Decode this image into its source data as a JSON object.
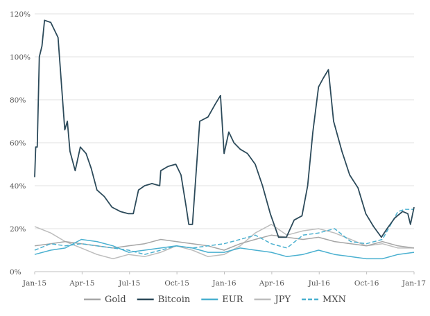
{
  "chart_data": {
    "type": "line",
    "title": "",
    "xlabel": "",
    "ylabel": "",
    "x_ticks": [
      "Jan-15",
      "Apr-15",
      "Jul-15",
      "Oct-15",
      "Jan-16",
      "Apr-16",
      "Jul-16",
      "Oct-16",
      "Jan-17"
    ],
    "y_ticks": [
      "0%",
      "20%",
      "40%",
      "60%",
      "80%",
      "100%",
      "120%"
    ],
    "ylim": [
      0,
      120
    ],
    "grid": true,
    "legend_position": "bottom",
    "series": [
      {
        "name": "Gold",
        "color": "#a6a6a6",
        "dash": false,
        "width": 1.5,
        "x": [
          "2015-01-01",
          "2015-02-01",
          "2015-03-01",
          "2015-04-01",
          "2015-05-01",
          "2015-06-01",
          "2015-07-01",
          "2015-08-01",
          "2015-09-01",
          "2015-10-01",
          "2015-11-01",
          "2015-12-01",
          "2016-01-01",
          "2016-02-01",
          "2016-03-01",
          "2016-04-01",
          "2016-05-01",
          "2016-06-01",
          "2016-07-01",
          "2016-08-01",
          "2016-09-01",
          "2016-10-01",
          "2016-11-01",
          "2016-12-01",
          "2017-01-01"
        ],
        "values": [
          12,
          13,
          14,
          13,
          12,
          11,
          12,
          13,
          15,
          14,
          13,
          12,
          10,
          13,
          15,
          17,
          16,
          15,
          16,
          14,
          13,
          12,
          14,
          12,
          11
        ]
      },
      {
        "name": "Bitcoin",
        "color": "#2c4a5a",
        "dash": false,
        "width": 1.8,
        "x": [
          "2015-01-01",
          "2015-01-03",
          "2015-01-06",
          "2015-01-10",
          "2015-01-15",
          "2015-01-20",
          "2015-02-01",
          "2015-02-15",
          "2015-02-28",
          "2015-03-05",
          "2015-03-10",
          "2015-03-20",
          "2015-03-30",
          "2015-04-10",
          "2015-04-20",
          "2015-05-01",
          "2015-05-15",
          "2015-05-30",
          "2015-06-15",
          "2015-06-30",
          "2015-07-10",
          "2015-07-20",
          "2015-08-01",
          "2015-08-15",
          "2015-08-30",
          "2015-09-01",
          "2015-09-15",
          "2015-09-30",
          "2015-10-10",
          "2015-10-20",
          "2015-10-25",
          "2015-11-01",
          "2015-11-15",
          "2015-12-01",
          "2015-12-15",
          "2015-12-25",
          "2016-01-01",
          "2016-01-10",
          "2016-01-20",
          "2016-02-01",
          "2016-02-15",
          "2016-03-01",
          "2016-03-15",
          "2016-03-30",
          "2016-04-15",
          "2016-04-30",
          "2016-05-15",
          "2016-05-30",
          "2016-06-10",
          "2016-06-20",
          "2016-07-01",
          "2016-07-10",
          "2016-07-20",
          "2016-07-30",
          "2016-08-15",
          "2016-08-30",
          "2016-09-15",
          "2016-09-30",
          "2016-10-15",
          "2016-10-30",
          "2016-11-10",
          "2016-11-25",
          "2016-12-10",
          "2016-12-20",
          "2016-12-25",
          "2017-01-01"
        ],
        "values": [
          44,
          58,
          58,
          100,
          105,
          117,
          116,
          109,
          66,
          70,
          56,
          47,
          58,
          55,
          48,
          38,
          35,
          30,
          28,
          27,
          27,
          38,
          40,
          41,
          40,
          47,
          49,
          50,
          45,
          30,
          22,
          22,
          70,
          72,
          78,
          82,
          55,
          65,
          60,
          57,
          55,
          50,
          40,
          27,
          16,
          16,
          24,
          26,
          40,
          65,
          86,
          90,
          94,
          70,
          56,
          45,
          39,
          27,
          21,
          16,
          20,
          25,
          28,
          27,
          22,
          30
        ]
      },
      {
        "name": "EUR",
        "color": "#4ab0d0",
        "dash": false,
        "width": 1.5,
        "x": [
          "2015-01-01",
          "2015-02-01",
          "2015-03-01",
          "2015-04-01",
          "2015-05-01",
          "2015-06-01",
          "2015-07-01",
          "2015-08-01",
          "2015-09-01",
          "2015-10-01",
          "2015-11-01",
          "2015-12-01",
          "2016-01-01",
          "2016-02-01",
          "2016-03-01",
          "2016-04-01",
          "2016-05-01",
          "2016-06-01",
          "2016-07-01",
          "2016-08-01",
          "2016-09-01",
          "2016-10-01",
          "2016-11-01",
          "2016-12-01",
          "2017-01-01"
        ],
        "values": [
          8,
          10,
          11,
          15,
          14,
          12,
          9,
          10,
          11,
          12,
          11,
          9,
          9,
          11,
          10,
          9,
          7,
          8,
          10,
          8,
          7,
          6,
          6,
          8,
          9
        ]
      },
      {
        "name": "JPY",
        "color": "#bdbdbd",
        "dash": false,
        "width": 1.5,
        "x": [
          "2015-01-01",
          "2015-02-01",
          "2015-03-01",
          "2015-04-01",
          "2015-05-01",
          "2015-06-01",
          "2015-07-01",
          "2015-08-01",
          "2015-09-01",
          "2015-10-01",
          "2015-11-01",
          "2015-12-01",
          "2016-01-01",
          "2016-02-01",
          "2016-03-01",
          "2016-04-01",
          "2016-05-01",
          "2016-06-01",
          "2016-07-01",
          "2016-08-01",
          "2016-09-01",
          "2016-10-01",
          "2016-11-01",
          "2016-12-01",
          "2017-01-01"
        ],
        "values": [
          21,
          18,
          14,
          11,
          8,
          6,
          8,
          7,
          9,
          12,
          10,
          7,
          8,
          12,
          18,
          22,
          17,
          19,
          20,
          18,
          15,
          12,
          13,
          11,
          11
        ]
      },
      {
        "name": "MXN",
        "color": "#4ab0d0",
        "dash": true,
        "width": 1.5,
        "x": [
          "2015-01-01",
          "2015-02-01",
          "2015-03-01",
          "2015-04-01",
          "2015-05-01",
          "2015-06-01",
          "2015-07-01",
          "2015-08-01",
          "2015-09-01",
          "2015-10-01",
          "2015-11-01",
          "2015-12-01",
          "2016-01-01",
          "2016-02-01",
          "2016-03-01",
          "2016-04-01",
          "2016-05-01",
          "2016-06-01",
          "2016-07-01",
          "2016-08-01",
          "2016-09-01",
          "2016-10-01",
          "2016-11-01",
          "2016-12-01",
          "2016-12-15",
          "2017-01-01"
        ],
        "values": [
          10,
          13,
          12,
          13,
          12,
          11,
          10,
          8,
          10,
          12,
          11,
          12,
          13,
          15,
          17,
          13,
          11,
          17,
          18,
          20,
          14,
          13,
          15,
          28,
          29,
          29
        ]
      }
    ]
  }
}
